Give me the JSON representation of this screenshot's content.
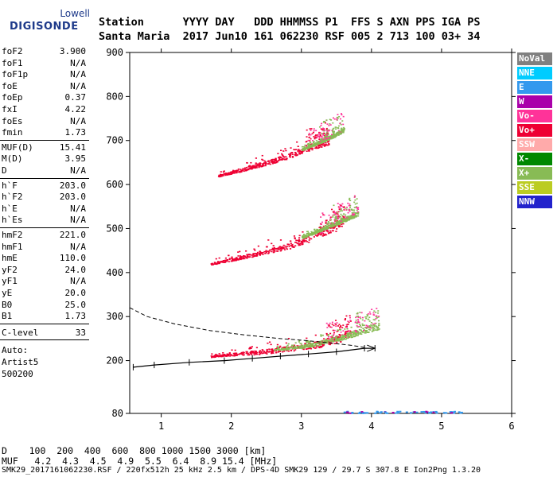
{
  "logo": {
    "line1": "Lowell",
    "line2": "DIGISONDE"
  },
  "header": {
    "labels": [
      "Station",
      "YYYY",
      "DAY",
      "DDD",
      "HHMMSS",
      "P1",
      "FFS",
      "S",
      "AXN",
      "PPS",
      "IGA",
      "PS"
    ],
    "values": [
      "Santa Maria",
      "2017",
      "Jun10",
      "161",
      "062230",
      "RSF",
      "005",
      "2",
      "713",
      "100",
      "03+",
      "34"
    ]
  },
  "params": {
    "group1": [
      {
        "name": "foF2",
        "value": "3.900"
      },
      {
        "name": "foF1",
        "value": "N/A"
      },
      {
        "name": "foF1p",
        "value": "N/A"
      },
      {
        "name": "foE",
        "value": "N/A"
      },
      {
        "name": "foEp",
        "value": "0.37"
      },
      {
        "name": "fxI",
        "value": "4.22"
      },
      {
        "name": "foEs",
        "value": "N/A"
      },
      {
        "name": "fmin",
        "value": "1.73"
      }
    ],
    "group2": [
      {
        "name": "MUF(D)",
        "value": "15.41"
      },
      {
        "name": "M(D)",
        "value": "3.95"
      },
      {
        "name": "D",
        "value": "N/A"
      }
    ],
    "group3": [
      {
        "name": "h`F",
        "value": "203.0"
      },
      {
        "name": "h`F2",
        "value": "203.0"
      },
      {
        "name": "h`E",
        "value": "N/A"
      },
      {
        "name": "h`Es",
        "value": "N/A"
      }
    ],
    "group4": [
      {
        "name": "hmF2",
        "value": "221.0"
      },
      {
        "name": "hmF1",
        "value": "N/A"
      },
      {
        "name": "hmE",
        "value": "110.0"
      },
      {
        "name": "yF2",
        "value": "24.0"
      },
      {
        "name": "yF1",
        "value": "N/A"
      },
      {
        "name": "yE",
        "value": "20.0"
      },
      {
        "name": "B0",
        "value": "25.0"
      },
      {
        "name": "B1",
        "value": "1.73"
      }
    ],
    "clevel": {
      "name": "C-level",
      "value": "33"
    },
    "auto": [
      "Auto:",
      "Artist5",
      "500200"
    ]
  },
  "legend": [
    {
      "label": "NoVal",
      "color": "#808080"
    },
    {
      "label": "NNE",
      "color": "#00ccff"
    },
    {
      "label": "E",
      "color": "#3399ee"
    },
    {
      "label": "W",
      "color": "#aa00aa"
    },
    {
      "label": "Vo-",
      "color": "#ff3399"
    },
    {
      "label": "Vo+",
      "color": "#ee0033"
    },
    {
      "label": "SSW",
      "color": "#ffaaaa"
    },
    {
      "label": "X-",
      "color": "#008800"
    },
    {
      "label": "X+",
      "color": "#88bb55"
    },
    {
      "label": "SSE",
      "color": "#bbcc22"
    },
    {
      "label": "NNW",
      "color": "#2222cc"
    }
  ],
  "chart_data": {
    "type": "scatter",
    "x_ticks": [
      "1",
      "2",
      "3",
      "4",
      "5",
      "6"
    ],
    "y_ticks": [
      "80",
      "200",
      "300",
      "400",
      "500",
      "600",
      "700",
      "800",
      "900"
    ],
    "xlim": [
      0.55,
      6
    ],
    "ylim": [
      80,
      900
    ],
    "xlabel": "",
    "ylabel": "",
    "traces": [
      {
        "color": "#ee0033",
        "points": [
          [
            1.7,
            210
          ],
          [
            2.0,
            215
          ],
          [
            2.4,
            220
          ],
          [
            2.8,
            228
          ],
          [
            3.1,
            235
          ],
          [
            3.3,
            240
          ],
          [
            3.5,
            250
          ],
          [
            3.7,
            262
          ]
        ]
      },
      {
        "color": "#88bb55",
        "points": [
          [
            2.6,
            225
          ],
          [
            3.0,
            232
          ],
          [
            3.3,
            242
          ],
          [
            3.6,
            255
          ],
          [
            3.9,
            270
          ],
          [
            4.1,
            280
          ]
        ]
      },
      {
        "color": "#ee0033",
        "points": [
          [
            1.7,
            420
          ],
          [
            2.0,
            430
          ],
          [
            2.4,
            445
          ],
          [
            2.8,
            460
          ],
          [
            3.1,
            478
          ],
          [
            3.3,
            492
          ],
          [
            3.5,
            505
          ],
          [
            3.6,
            520
          ]
        ]
      },
      {
        "color": "#88bb55",
        "points": [
          [
            3.0,
            480
          ],
          [
            3.3,
            500
          ],
          [
            3.6,
            520
          ],
          [
            3.8,
            535
          ]
        ]
      },
      {
        "color": "#ee0033",
        "points": [
          [
            1.8,
            620
          ],
          [
            2.1,
            632
          ],
          [
            2.5,
            650
          ],
          [
            2.8,
            665
          ],
          [
            3.0,
            678
          ],
          [
            3.2,
            690
          ],
          [
            3.4,
            700
          ]
        ]
      },
      {
        "color": "#88bb55",
        "points": [
          [
            3.0,
            680
          ],
          [
            3.3,
            700
          ],
          [
            3.5,
            715
          ],
          [
            3.6,
            725
          ]
        ]
      }
    ],
    "virtual_height_trace": [
      [
        0.6,
        185
      ],
      [
        0.9,
        190
      ],
      [
        1.4,
        196
      ],
      [
        1.9,
        200
      ],
      [
        2.3,
        205
      ],
      [
        2.7,
        210
      ],
      [
        3.1,
        215
      ],
      [
        3.5,
        220
      ],
      [
        3.9,
        228
      ],
      [
        4.05,
        228
      ]
    ],
    "profile_trace": [
      [
        0.55,
        320
      ],
      [
        0.8,
        300
      ],
      [
        1.2,
        283
      ],
      [
        1.7,
        268
      ],
      [
        2.2,
        258
      ],
      [
        2.7,
        250
      ],
      [
        3.1,
        245
      ],
      [
        3.4,
        240
      ],
      [
        3.7,
        235
      ],
      [
        3.9,
        230
      ]
    ]
  },
  "bottom": {
    "d_row": "D    100  200  400  600  800 1000 1500 3000 [km]",
    "muf_row": "MUF   4.2  4.3  4.5  4.9  5.5  6.4  8.9 15.4 [MHz]",
    "footer": "SMK29_2017161062230.RSF / 220fx512h 25 kHz 2.5 km / DPS-4D SMK29 129 / 29.7 S 307.8 E Ion2Png 1.3.20"
  }
}
